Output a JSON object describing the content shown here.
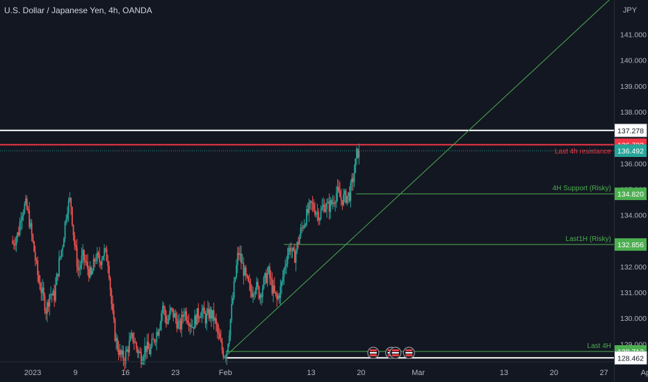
{
  "header": {
    "title": "U.S. Dollar / Japanese Yen, 4h, OANDA"
  },
  "price_axis": {
    "currency": "JPY",
    "ticks": [
      {
        "value": 141,
        "label": "141.000"
      },
      {
        "value": 140,
        "label": "140.000"
      },
      {
        "value": 139,
        "label": "139.000"
      },
      {
        "value": 138,
        "label": "138.000"
      },
      {
        "value": 136,
        "label": "136.000"
      },
      {
        "value": 135,
        "label": "135.000"
      },
      {
        "value": 134,
        "label": "134.000"
      },
      {
        "value": 133,
        "label": "133.000"
      },
      {
        "value": 132,
        "label": "132.000"
      },
      {
        "value": 131,
        "label": "131.000"
      },
      {
        "value": 130,
        "label": "130.000"
      },
      {
        "value": 129,
        "label": "129.000"
      }
    ]
  },
  "time_axis": {
    "ticks": [
      {
        "day": 0,
        "label": "2023"
      },
      {
        "day": 6,
        "label": "9"
      },
      {
        "day": 13,
        "label": "16"
      },
      {
        "day": 20,
        "label": "23"
      },
      {
        "day": 27,
        "label": "Feb"
      },
      {
        "day": 39,
        "label": "13"
      },
      {
        "day": 46,
        "label": "20"
      },
      {
        "day": 54,
        "label": "Mar"
      },
      {
        "day": 66,
        "label": "13"
      },
      {
        "day": 73,
        "label": "20"
      },
      {
        "day": 80,
        "label": "27"
      },
      {
        "day": 86,
        "label": "Apr"
      }
    ]
  },
  "chart_data": {
    "type": "candlestick",
    "symbol": "USDJPY",
    "timeframe": "4h",
    "source": "OANDA",
    "x_unit": "trading day offset from Jan 2, 2023",
    "ylim": [
      128.2,
      142.0
    ],
    "grid": false,
    "colors": {
      "up": "#26a69a",
      "down": "#ef5350",
      "background": "#131722",
      "axis_text": "#b2b5be",
      "support_line": "#4caf50",
      "resistance_line": "#f23645",
      "top_line": "#ffffff",
      "trendline": "#4caf50"
    },
    "close_path": [
      [
        -2.8,
        132.9
      ],
      [
        -2.0,
        133.3
      ],
      [
        -1.6,
        134.1
      ],
      [
        -1.0,
        134.4
      ],
      [
        -0.6,
        134.0
      ],
      [
        0.2,
        132.6
      ],
      [
        0.8,
        131.5
      ],
      [
        1.4,
        130.9
      ],
      [
        1.9,
        130.3
      ],
      [
        2.4,
        131.0
      ],
      [
        3.0,
        130.8
      ],
      [
        3.6,
        132.0
      ],
      [
        4.2,
        132.9
      ],
      [
        4.8,
        134.3
      ],
      [
        5.3,
        134.6
      ],
      [
        5.8,
        133.0
      ],
      [
        6.4,
        131.8
      ],
      [
        7.0,
        132.4
      ],
      [
        7.6,
        132.0
      ],
      [
        8.2,
        131.6
      ],
      [
        8.8,
        132.4
      ],
      [
        9.4,
        132.2
      ],
      [
        10.0,
        132.6
      ],
      [
        10.6,
        132.2
      ],
      [
        11.1,
        130.3
      ],
      [
        11.6,
        129.2
      ],
      [
        12.2,
        128.6
      ],
      [
        12.8,
        128.4
      ],
      [
        13.4,
        128.9
      ],
      [
        14.0,
        129.3
      ],
      [
        14.6,
        128.8
      ],
      [
        15.2,
        128.5
      ],
      [
        15.8,
        128.9
      ],
      [
        16.4,
        128.7
      ],
      [
        17.0,
        129.2
      ],
      [
        17.6,
        129.6
      ],
      [
        18.2,
        130.5
      ],
      [
        18.8,
        129.8
      ],
      [
        19.4,
        130.3
      ],
      [
        20.0,
        130.0
      ],
      [
        20.6,
        129.6
      ],
      [
        21.2,
        130.3
      ],
      [
        21.8,
        130.0
      ],
      [
        22.4,
        129.7
      ],
      [
        23.0,
        130.1
      ],
      [
        23.6,
        130.3
      ],
      [
        24.2,
        130.0
      ],
      [
        24.8,
        130.2
      ],
      [
        25.4,
        130.0
      ],
      [
        26.0,
        129.3
      ],
      [
        26.6,
        128.7
      ],
      [
        27.1,
        128.6
      ],
      [
        27.6,
        129.7
      ],
      [
        28.2,
        131.2
      ],
      [
        28.8,
        132.6
      ],
      [
        29.4,
        132.0
      ],
      [
        30.0,
        131.4
      ],
      [
        30.6,
        131.0
      ],
      [
        31.2,
        131.3
      ],
      [
        31.8,
        130.9
      ],
      [
        32.4,
        131.4
      ],
      [
        33.0,
        131.8
      ],
      [
        33.6,
        131.1
      ],
      [
        34.2,
        130.7
      ],
      [
        34.8,
        131.2
      ],
      [
        35.4,
        132.2
      ],
      [
        36.0,
        132.8
      ],
      [
        36.6,
        132.3
      ],
      [
        37.2,
        133.0
      ],
      [
        37.8,
        133.6
      ],
      [
        38.4,
        134.0
      ],
      [
        39.0,
        134.4
      ],
      [
        39.6,
        134.2
      ],
      [
        40.2,
        134.0
      ],
      [
        40.8,
        134.4
      ],
      [
        41.4,
        134.3
      ],
      [
        42.0,
        134.5
      ],
      [
        42.6,
        134.9
      ],
      [
        43.2,
        134.6
      ],
      [
        43.8,
        134.7
      ],
      [
        44.4,
        134.8
      ],
      [
        45.0,
        135.6
      ],
      [
        45.4,
        136.4
      ],
      [
        45.7,
        136.5
      ]
    ],
    "levels": [
      {
        "value": 137.278,
        "label": "137.278",
        "line": "top",
        "note": ""
      },
      {
        "value": 136.723,
        "label": "136.723",
        "line": "resistance",
        "note": ""
      },
      {
        "value": 136.492,
        "label": "136.492",
        "line": "current",
        "note": "Last 4h resistance"
      },
      {
        "value": 134.82,
        "label": "134.820",
        "line": "support",
        "note": "4H Support (Risky)"
      },
      {
        "value": 132.856,
        "label": "132.856",
        "line": "support",
        "note": "Last1H (Risky)"
      },
      {
        "value": 128.712,
        "label": "128.712",
        "line": "support",
        "note": "Last 4H"
      },
      {
        "value": 128.462,
        "label": "128.462",
        "line": "top",
        "note": ""
      }
    ],
    "trendline": {
      "x1": 27.3,
      "y1": 128.6,
      "x2": 81.0,
      "y2": 142.4
    },
    "event_markers": [
      47.7,
      50.2,
      50.8,
      52.7
    ]
  }
}
